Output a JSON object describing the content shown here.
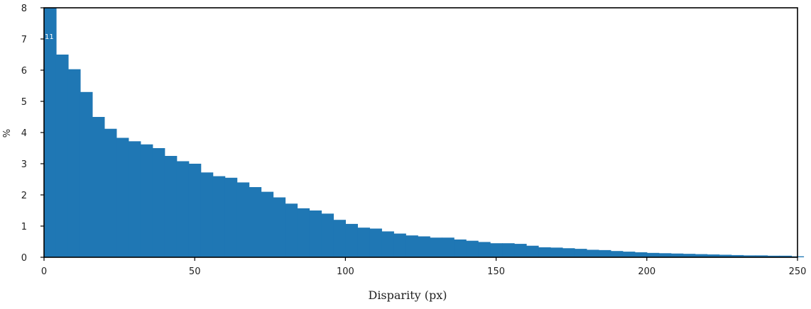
{
  "chart_data": {
    "type": "bar",
    "title": "",
    "xlabel": "Disparity (px)",
    "ylabel": "%",
    "xlim": [
      0,
      250
    ],
    "ylim": [
      0,
      8
    ],
    "xticks": [
      "0",
      "50",
      "100",
      "150",
      "200",
      "250"
    ],
    "yticks": [
      "0",
      "1",
      "2",
      "3",
      "4",
      "5",
      "6",
      "7",
      "8"
    ],
    "grid": false,
    "legend": "none",
    "bar_color": "#1f77b4",
    "bin_width": 4,
    "bins_start": [
      0,
      4,
      8,
      12,
      16,
      20,
      24,
      28,
      32,
      36,
      40,
      44,
      48,
      52,
      56,
      60,
      64,
      68,
      72,
      76,
      80,
      84,
      88,
      92,
      96,
      100,
      104,
      108,
      112,
      116,
      120,
      124,
      128,
      132,
      136,
      140,
      144,
      148,
      152,
      156,
      160,
      164,
      168,
      172,
      176,
      180,
      184,
      188,
      192,
      196,
      200,
      204,
      208,
      212,
      216,
      220,
      224,
      228,
      232,
      236,
      240,
      244,
      248
    ],
    "values": [
      11,
      6.5,
      6.03,
      5.3,
      4.5,
      4.12,
      3.83,
      3.72,
      3.62,
      3.5,
      3.25,
      3.08,
      3.0,
      2.72,
      2.6,
      2.55,
      2.4,
      2.25,
      2.1,
      1.92,
      1.72,
      1.57,
      1.5,
      1.4,
      1.2,
      1.07,
      0.95,
      0.92,
      0.83,
      0.76,
      0.7,
      0.67,
      0.63,
      0.63,
      0.57,
      0.53,
      0.49,
      0.45,
      0.45,
      0.43,
      0.37,
      0.32,
      0.31,
      0.29,
      0.27,
      0.24,
      0.23,
      0.2,
      0.18,
      0.16,
      0.14,
      0.13,
      0.12,
      0.11,
      0.1,
      0.09,
      0.08,
      0.07,
      0.06,
      0.06,
      0.05,
      0.05,
      0.03
    ],
    "annotations": [
      {
        "text": "11"
      }
    ]
  }
}
